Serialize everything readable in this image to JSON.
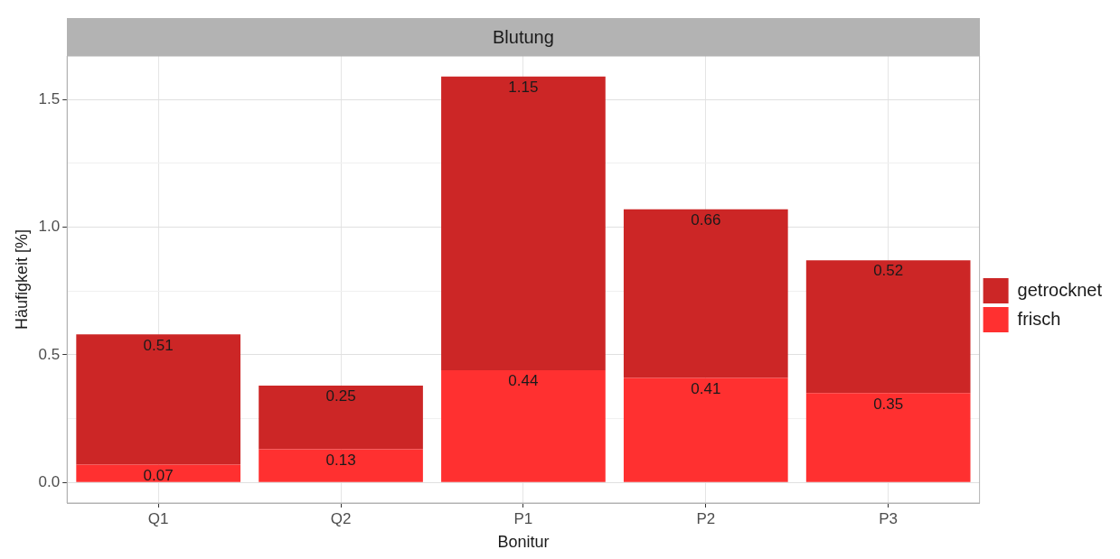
{
  "chart_data": {
    "type": "bar",
    "title": "Blutung",
    "xlabel": "Bonitur",
    "ylabel": "Häufigkeit [%]",
    "categories": [
      "Q1",
      "Q2",
      "P1",
      "P2",
      "P3"
    ],
    "stacked": true,
    "data_labels": true,
    "grid": true,
    "legend": "right",
    "series": [
      {
        "name": "frisch",
        "color": "#ff3030",
        "values": [
          0.07,
          0.13,
          0.44,
          0.41,
          0.35
        ]
      },
      {
        "name": "getrocknet",
        "color": "#cc2626",
        "values": [
          0.51,
          0.25,
          1.15,
          0.66,
          0.52
        ]
      }
    ],
    "ylim": [
      -0.08,
      1.67
    ],
    "yticks": [
      {
        "value": 0,
        "label": "0.0"
      },
      {
        "value": 0.25,
        "label": null
      },
      {
        "value": 0.5,
        "label": "0.5"
      },
      {
        "value": 0.75,
        "label": null
      },
      {
        "value": 1,
        "label": "1.0"
      },
      {
        "value": 1.25,
        "label": null
      },
      {
        "value": 1.5,
        "label": "1.5"
      }
    ]
  }
}
